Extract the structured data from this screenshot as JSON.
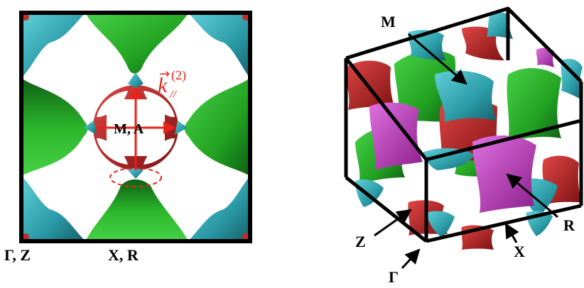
{
  "left_panel": {
    "corner_label": "Γ, Z",
    "edge_label": "X, R",
    "center_label": "M, A",
    "vector_label": {
      "symbol": "k",
      "subscript": "//",
      "superscript": "(2)"
    }
  },
  "right_panel": {
    "labels": {
      "m": "M",
      "r": "R",
      "z": "Z",
      "x": "X",
      "gamma": "Γ"
    }
  },
  "colors": {
    "cyan": "#2fa5b0",
    "green": "#2bb52b",
    "red": "#c42a2a",
    "magenta": "#c63cc6",
    "arrow_red": "#e8231a",
    "frame": "#000000"
  }
}
